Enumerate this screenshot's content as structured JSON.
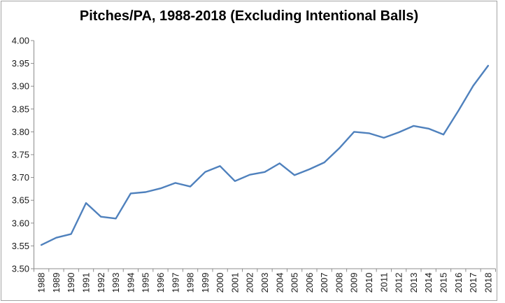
{
  "window": {
    "background_color": "#FFFFFF",
    "frame_border_color": "#A3A3A3"
  },
  "chart_data": {
    "type": "line",
    "title": "Pitches/PA, 1988-2018 (Excluding Intentional Balls)",
    "xlabel": "",
    "ylabel": "",
    "categories": [
      1988,
      1989,
      1990,
      1991,
      1992,
      1993,
      1994,
      1995,
      1996,
      1997,
      1998,
      1999,
      2000,
      2001,
      2002,
      2003,
      2004,
      2005,
      2006,
      2007,
      2008,
      2009,
      2010,
      2011,
      2012,
      2013,
      2014,
      2015,
      2016,
      2017,
      2018
    ],
    "series": [
      {
        "name": "Pitches/PA",
        "values": [
          3.552,
          3.568,
          3.576,
          3.644,
          3.614,
          3.61,
          3.665,
          3.668,
          3.676,
          3.688,
          3.68,
          3.712,
          3.725,
          3.692,
          3.706,
          3.712,
          3.731,
          3.705,
          3.718,
          3.733,
          3.764,
          3.8,
          3.797,
          3.787,
          3.799,
          3.813,
          3.807,
          3.794,
          3.846,
          3.901,
          3.945
        ]
      }
    ],
    "ylim": [
      3.5,
      4.0
    ],
    "ytick_step": 0.05,
    "y_tick_labels": [
      "3.50",
      "3.55",
      "3.60",
      "3.65",
      "3.70",
      "3.75",
      "3.80",
      "3.85",
      "3.90",
      "3.95",
      "4.00"
    ],
    "x_tick_rotation_degrees": -90,
    "grid": false,
    "legend": "none",
    "line_color": "#4F81BD",
    "axis_color": "#8C8C8C",
    "label_color": "#1A1A1A",
    "title_color": "#000000"
  }
}
